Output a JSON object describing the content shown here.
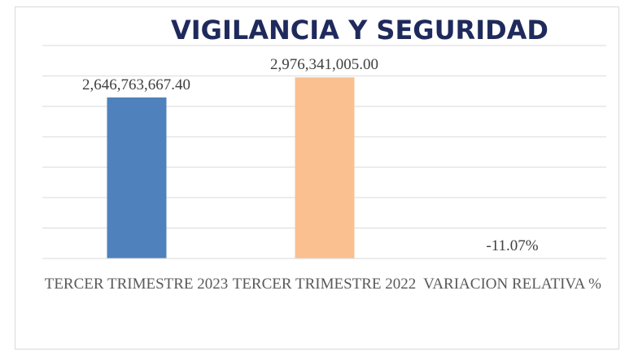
{
  "chart_data": {
    "type": "bar",
    "title": "VIGILANCIA Y SEGURIDAD",
    "categories": [
      "TERCER TRIMESTRE 2023",
      "TERCER TRIMESTRE 2022",
      "VARIACION RELATIVA %"
    ],
    "values": [
      2646763667.4,
      2976341005.0,
      -11.07
    ],
    "value_labels": [
      "2,646,763,667.40",
      "2,976,341,005.00",
      "-11.07%"
    ],
    "colors": [
      "#4f81bd",
      "#fac090",
      "#9bbb59"
    ],
    "ylim": [
      0,
      3500000000
    ],
    "yticks": [
      0,
      500000000,
      1000000000,
      1500000000,
      2000000000,
      2500000000,
      3000000000,
      3500000000
    ],
    "grid": true
  }
}
